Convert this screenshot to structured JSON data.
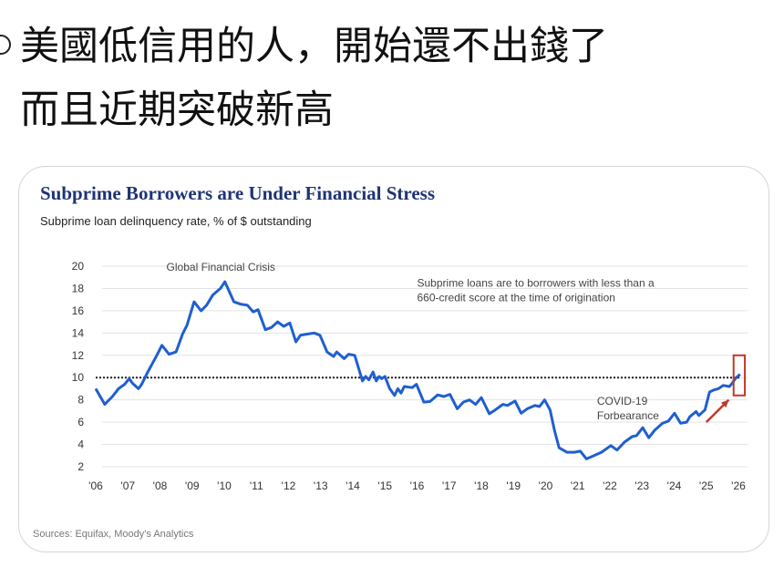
{
  "headline": {
    "line1": "美國低信用的人，開始還不出錢了",
    "line2": "而且近期突破新高"
  },
  "chart_data": {
    "type": "line",
    "title": "Subprime Borrowers are Under Financial Stress",
    "subtitle": "Subprime loan delinquency rate, % of $ outstanding",
    "source": "Sources: Equifax, Moody's Analytics",
    "xlabel": "",
    "ylabel": "",
    "xlim": [
      2006,
      2026
    ],
    "ylim": [
      2,
      20
    ],
    "x_tick_labels": [
      "'06",
      "'07",
      "'08",
      "'09",
      "'10",
      "'11",
      "'12",
      "'13",
      "'14",
      "'15",
      "'16",
      "'17",
      "'18",
      "'19",
      "'20",
      "'21",
      "'22",
      "'23",
      "'24",
      "'25",
      "'26"
    ],
    "y_ticks": [
      2,
      4,
      6,
      8,
      10,
      12,
      14,
      16,
      18,
      20
    ],
    "grid": "horizontal",
    "reference_line": {
      "y": 10,
      "style": "dotted",
      "color": "#222222"
    },
    "series_color": "#1f5fd0",
    "highlight_color": "#c0392b",
    "annotations": [
      {
        "text": "Global Financial Crisis",
        "x": 2008.2,
        "y": 19.9
      },
      {
        "lines": [
          "Subprime loans are to borrowers with less than a",
          "660-credit score at the time of origination"
        ],
        "x": 2016.0,
        "y": 18.5
      },
      {
        "lines": [
          "COVID-19",
          "Forbearance"
        ],
        "x": 2021.6,
        "y": 7.9
      }
    ],
    "highlight_box": {
      "x": [
        2025.85,
        2026.2
      ],
      "y": [
        8.4,
        12.0
      ]
    },
    "arrow": {
      "from": [
        2025.0,
        6.0
      ],
      "to": [
        2025.7,
        8.0
      ]
    },
    "x": [
      2006.0,
      2006.28,
      2006.52,
      2006.71,
      2006.9,
      2007.04,
      2007.14,
      2007.33,
      2007.43,
      2007.62,
      2007.9,
      2008.06,
      2008.28,
      2008.5,
      2008.7,
      2008.84,
      2009.06,
      2009.28,
      2009.45,
      2009.64,
      2009.88,
      2010.02,
      2010.3,
      2010.5,
      2010.72,
      2010.9,
      2011.05,
      2011.28,
      2011.47,
      2011.66,
      2011.85,
      2012.04,
      2012.23,
      2012.37,
      2012.56,
      2012.8,
      2012.98,
      2013.2,
      2013.4,
      2013.5,
      2013.73,
      2013.87,
      2014.06,
      2014.3,
      2014.4,
      2014.5,
      2014.63,
      2014.73,
      2014.82,
      2014.9,
      2015.0,
      2015.15,
      2015.3,
      2015.4,
      2015.5,
      2015.6,
      2015.85,
      2015.98,
      2016.21,
      2016.4,
      2016.64,
      2016.83,
      2017.02,
      2017.25,
      2017.44,
      2017.63,
      2017.82,
      2018.0,
      2018.25,
      2018.43,
      2018.67,
      2018.81,
      2019.05,
      2019.24,
      2019.43,
      2019.67,
      2019.81,
      2019.97,
      2020.14,
      2020.28,
      2020.42,
      2020.66,
      2020.9,
      2021.08,
      2021.27,
      2021.51,
      2021.74,
      2022.03,
      2022.22,
      2022.45,
      2022.69,
      2022.83,
      2023.02,
      2023.21,
      2023.4,
      2023.64,
      2023.82,
      2024.01,
      2024.2,
      2024.39,
      2024.49,
      2024.68,
      2024.77,
      2024.96,
      2025.1,
      2025.24,
      2025.38,
      2025.53,
      2025.72,
      2025.81,
      2025.9,
      2026.05
    ],
    "values": [
      9.0,
      7.6,
      8.3,
      9.0,
      9.4,
      9.9,
      9.5,
      9.0,
      9.4,
      10.5,
      12.0,
      12.9,
      12.1,
      12.3,
      13.9,
      14.7,
      16.8,
      16.0,
      16.5,
      17.4,
      18.0,
      18.6,
      16.8,
      16.6,
      16.5,
      15.9,
      16.1,
      14.3,
      14.5,
      15.0,
      14.6,
      14.9,
      13.2,
      13.8,
      13.9,
      14.0,
      13.8,
      12.3,
      11.9,
      12.3,
      11.7,
      12.1,
      12.0,
      9.7,
      10.1,
      9.8,
      10.5,
      9.7,
      10.1,
      9.9,
      10.1,
      9.0,
      8.4,
      9.0,
      8.6,
      9.2,
      9.1,
      9.4,
      7.8,
      7.85,
      8.45,
      8.3,
      8.5,
      7.2,
      7.8,
      8.0,
      7.6,
      8.2,
      6.75,
      7.1,
      7.6,
      7.5,
      7.9,
      6.8,
      7.2,
      7.5,
      7.4,
      8.0,
      7.1,
      5.2,
      3.7,
      3.3,
      3.3,
      3.4,
      2.7,
      3.0,
      3.3,
      3.9,
      3.5,
      4.2,
      4.7,
      4.8,
      5.5,
      4.6,
      5.3,
      5.9,
      6.1,
      6.8,
      5.9,
      6.0,
      6.5,
      6.95,
      6.6,
      7.1,
      8.7,
      8.9,
      9.0,
      9.3,
      9.2,
      9.5,
      9.9,
      10.3
    ]
  }
}
